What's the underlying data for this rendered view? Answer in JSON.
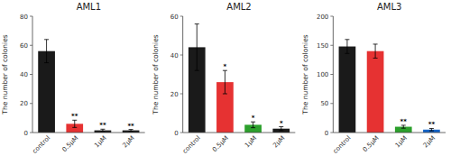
{
  "chart_data": [
    {
      "type": "bar",
      "title": "AML1",
      "ylabel": "The number of colonies",
      "categories": [
        "control",
        "0.5μM",
        "1μM",
        "2μM"
      ],
      "values": [
        56,
        6,
        1.5,
        1.5
      ],
      "errors": [
        8,
        2.5,
        0.8,
        0.6
      ],
      "colors": [
        "#1a1a1a",
        "#e63232",
        "#1a1a1a",
        "#1a1a1a"
      ],
      "ylim": [
        0,
        80
      ],
      "yticks": [
        0,
        20,
        40,
        60,
        80
      ],
      "annotations": [
        null,
        "**",
        "**",
        "**"
      ],
      "grid": false
    },
    {
      "type": "bar",
      "title": "AML2",
      "ylabel": "The number of colonies",
      "categories": [
        "control",
        "0.5μM",
        "1μM",
        "2μM"
      ],
      "values": [
        44,
        26,
        4,
        2
      ],
      "errors": [
        12,
        6,
        1.5,
        1.0
      ],
      "colors": [
        "#1a1a1a",
        "#e63232",
        "#2ca02c",
        "#1a1a1a"
      ],
      "ylim": [
        0,
        60
      ],
      "yticks": [
        0,
        20,
        40,
        60
      ],
      "annotations": [
        null,
        "*",
        "*",
        "*"
      ],
      "grid": false
    },
    {
      "type": "bar",
      "title": "AML3",
      "ylabel": "The number of colonies",
      "categories": [
        "control",
        "0.5μM",
        "1μM",
        "2μM"
      ],
      "values": [
        148,
        140,
        10,
        5
      ],
      "errors": [
        12,
        12,
        2.5,
        2.0
      ],
      "colors": [
        "#1a1a1a",
        "#e63232",
        "#2ca02c",
        "#1464c8"
      ],
      "ylim": [
        0,
        200
      ],
      "yticks": [
        0,
        50,
        100,
        150,
        200
      ],
      "annotations": [
        null,
        null,
        "**",
        "**"
      ],
      "grid": false
    }
  ]
}
